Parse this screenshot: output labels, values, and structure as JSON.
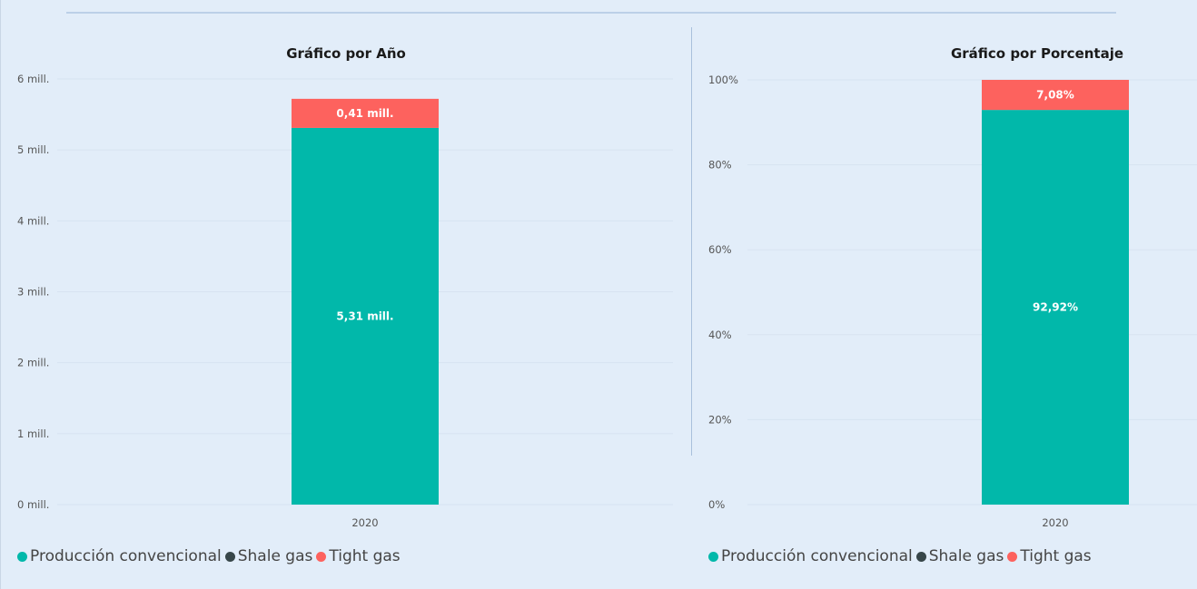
{
  "colors": {
    "produccion": "#01b8aa",
    "shale": "#374649",
    "tight": "#fd625e"
  },
  "legend": [
    {
      "label": "Producción convencional",
      "color": "#01b8aa"
    },
    {
      "label": "Shale gas",
      "color": "#374649"
    },
    {
      "label": "Tight gas",
      "color": "#fd625e"
    }
  ],
  "chart_data": [
    {
      "type": "bar",
      "stacked": true,
      "title": "Gráfico por Año",
      "categories": [
        "2020"
      ],
      "ylim": [
        0,
        6
      ],
      "yticks": [
        "0 mill.",
        "1 mill.",
        "2 mill.",
        "3 mill.",
        "4 mill.",
        "5 mill.",
        "6 mill."
      ],
      "series": [
        {
          "name": "Producción convencional",
          "values": [
            5.31
          ],
          "label": "5,31 mill."
        },
        {
          "name": "Shale gas",
          "values": [
            0
          ]
        },
        {
          "name": "Tight gas",
          "values": [
            0.41
          ],
          "label": "0,41 mill."
        }
      ],
      "grid": true,
      "legend_position": "bottom-left"
    },
    {
      "type": "bar",
      "stacked": true,
      "title": "Gráfico por Porcentaje",
      "categories": [
        "2020"
      ],
      "ylim": [
        0,
        100
      ],
      "yticks": [
        "0%",
        "20%",
        "40%",
        "60%",
        "80%",
        "100%"
      ],
      "series": [
        {
          "name": "Producción convencional",
          "values": [
            92.92
          ],
          "label": "92,92%"
        },
        {
          "name": "Shale gas",
          "values": [
            0
          ]
        },
        {
          "name": "Tight gas",
          "values": [
            7.08
          ],
          "label": "7,08%"
        }
      ],
      "grid": true,
      "legend_position": "bottom-left"
    }
  ]
}
